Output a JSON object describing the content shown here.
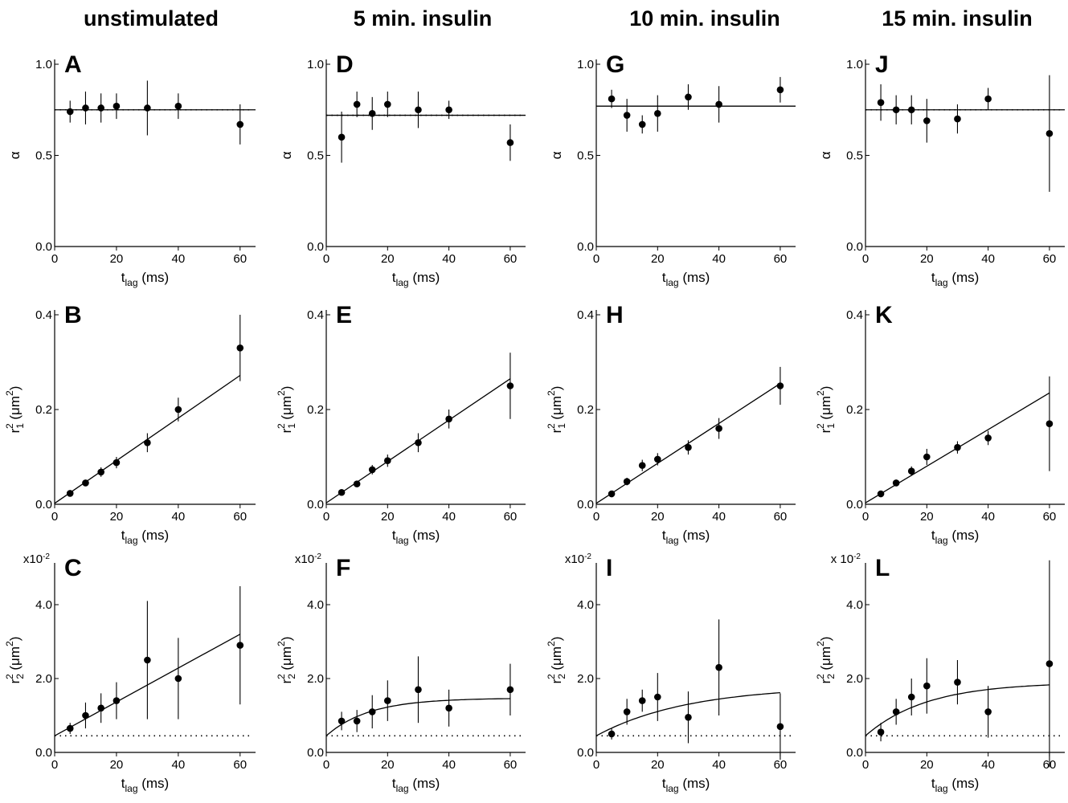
{
  "column_titles": [
    "unstimulated",
    "5 min. insulin",
    "10 min. insulin",
    "15 min. insulin"
  ],
  "chart_data": [
    {
      "panel": "A",
      "type": "scatter",
      "xlabel": "t",
      "xlabel_sub": "lag",
      "xlabel_unit": " (ms)",
      "ylabel": "α",
      "xlim": [
        0,
        65
      ],
      "ylim": [
        0,
        1
      ],
      "xticks": [
        "0",
        "20",
        "40",
        "60"
      ],
      "yticks": [
        "0.0",
        "0.5",
        "1.0"
      ],
      "yfactor": "",
      "x": [
        5,
        10,
        15,
        20,
        30,
        40,
        60
      ],
      "y": [
        0.74,
        0.76,
        0.76,
        0.77,
        0.76,
        0.77,
        0.67
      ],
      "err": [
        0.06,
        0.09,
        0.08,
        0.07,
        0.15,
        0.07,
        0.11
      ],
      "fit": {
        "type": "line",
        "points": [
          [
            0,
            0.75
          ],
          [
            65,
            0.75
          ]
        ]
      },
      "dotted": 0.75
    },
    {
      "panel": "B",
      "type": "scatter",
      "xlabel": "t",
      "xlabel_sub": "lag",
      "xlabel_unit": " (ms)",
      "ylabel": "r",
      "ylabel_sub": "1",
      "ylabel_unit": " (μm",
      "xlim": [
        0,
        65
      ],
      "ylim": [
        0,
        0.4
      ],
      "xticks": [
        "0",
        "20",
        "40",
        "60"
      ],
      "yticks": [
        "0.0",
        "0.2",
        "0.4"
      ],
      "yfactor": "",
      "x": [
        5,
        10,
        15,
        20,
        30,
        40,
        60
      ],
      "y": [
        0.023,
        0.045,
        0.068,
        0.088,
        0.13,
        0.2,
        0.33
      ],
      "err": [
        0.005,
        0.005,
        0.01,
        0.012,
        0.02,
        0.025,
        0.07
      ],
      "fit": {
        "type": "line",
        "points": [
          [
            0,
            0.002
          ],
          [
            60,
            0.272
          ]
        ]
      }
    },
    {
      "panel": "C",
      "type": "scatter",
      "xlabel": "t",
      "xlabel_sub": "lag",
      "xlabel_unit": " (ms)",
      "ylabel": "r",
      "ylabel_sub": "2",
      "ylabel_unit": " (μm",
      "xlim": [
        0,
        65
      ],
      "ylim": [
        0,
        5
      ],
      "xticks": [
        "0",
        "20",
        "40",
        "60"
      ],
      "yticks": [
        "0.0",
        "2.0",
        "4.0"
      ],
      "yfactor": "x10",
      "yfactor_exp": "-2",
      "x": [
        5,
        10,
        15,
        20,
        30,
        40,
        60
      ],
      "y": [
        0.65,
        1.0,
        1.2,
        1.4,
        2.5,
        2.0,
        2.9
      ],
      "err": [
        0.15,
        0.35,
        0.4,
        0.5,
        1.6,
        1.1,
        1.6
      ],
      "fit": {
        "type": "line",
        "points": [
          [
            0,
            0.45
          ],
          [
            60,
            3.2
          ]
        ]
      },
      "dotted": 0.45
    },
    {
      "panel": "D",
      "type": "scatter",
      "xlabel": "t",
      "xlabel_sub": "lag",
      "xlabel_unit": " (ms)",
      "ylabel": "α",
      "xlim": [
        0,
        65
      ],
      "ylim": [
        0,
        1
      ],
      "xticks": [
        "0",
        "20",
        "40",
        "60"
      ],
      "yticks": [
        "0.0",
        "0.5",
        "1.0"
      ],
      "yfactor": "",
      "x": [
        5,
        10,
        15,
        20,
        30,
        40,
        60
      ],
      "y": [
        0.6,
        0.78,
        0.73,
        0.78,
        0.75,
        0.75,
        0.57
      ],
      "err": [
        0.14,
        0.07,
        0.09,
        0.07,
        0.1,
        0.05,
        0.1
      ],
      "fit": {
        "type": "line",
        "points": [
          [
            0,
            0.72
          ],
          [
            65,
            0.72
          ]
        ]
      },
      "dotted": 0.72
    },
    {
      "panel": "E",
      "type": "scatter",
      "xlabel": "t",
      "xlabel_sub": "lag",
      "xlabel_unit": " (ms)",
      "ylabel": "r",
      "ylabel_sub": "1",
      "ylabel_unit": " (μm",
      "xlim": [
        0,
        65
      ],
      "ylim": [
        0,
        0.4
      ],
      "xticks": [
        "0",
        "20",
        "40",
        "60"
      ],
      "yticks": [
        "0.0",
        "0.2",
        "0.4"
      ],
      "yfactor": "",
      "x": [
        5,
        10,
        15,
        20,
        30,
        40,
        60
      ],
      "y": [
        0.025,
        0.043,
        0.073,
        0.092,
        0.13,
        0.18,
        0.25
      ],
      "err": [
        0.005,
        0.006,
        0.01,
        0.013,
        0.02,
        0.02,
        0.07
      ],
      "fit": {
        "type": "line",
        "points": [
          [
            0,
            0.003
          ],
          [
            60,
            0.265
          ]
        ]
      }
    },
    {
      "panel": "F",
      "type": "scatter",
      "xlabel": "t",
      "xlabel_sub": "lag",
      "xlabel_unit": " (ms)",
      "ylabel": "r",
      "ylabel_sub": "2",
      "ylabel_unit": " (μm",
      "xlim": [
        0,
        65
      ],
      "ylim": [
        0,
        5
      ],
      "xticks": [
        "0",
        "20",
        "40",
        "60"
      ],
      "yticks": [
        "0.0",
        "2.0",
        "4.0"
      ],
      "yfactor": "x10",
      "yfactor_exp": "-2",
      "x": [
        5,
        10,
        15,
        20,
        30,
        40,
        60
      ],
      "y": [
        0.85,
        0.85,
        1.1,
        1.4,
        1.7,
        1.2,
        1.7
      ],
      "err": [
        0.25,
        0.3,
        0.45,
        0.55,
        0.9,
        0.5,
        0.7
      ],
      "fit": {
        "type": "exp",
        "y0": 0.45,
        "amp": 1.02,
        "tau": 14,
        "x": [
          0,
          60
        ]
      },
      "dotted": 0.45
    },
    {
      "panel": "G",
      "type": "scatter",
      "xlabel": "t",
      "xlabel_sub": "lag",
      "xlabel_unit": " (ms)",
      "ylabel": "α",
      "xlim": [
        0,
        65
      ],
      "ylim": [
        0,
        1
      ],
      "xticks": [
        "0",
        "20",
        "40",
        "60"
      ],
      "yticks": [
        "0.0",
        "0.5",
        "1.0"
      ],
      "yfactor": "",
      "x": [
        5,
        10,
        15,
        20,
        30,
        40,
        60
      ],
      "y": [
        0.81,
        0.72,
        0.67,
        0.73,
        0.82,
        0.78,
        0.86
      ],
      "err": [
        0.05,
        0.09,
        0.05,
        0.1,
        0.07,
        0.1,
        0.07
      ],
      "fit": {
        "type": "line",
        "points": [
          [
            0,
            0.77
          ],
          [
            65,
            0.77
          ]
        ]
      }
    },
    {
      "panel": "H",
      "type": "scatter",
      "xlabel": "t",
      "xlabel_sub": "lag",
      "xlabel_unit": " (ms)",
      "ylabel": "r",
      "ylabel_sub": "1",
      "ylabel_unit": " (μm",
      "xlim": [
        0,
        65
      ],
      "ylim": [
        0,
        0.4
      ],
      "xticks": [
        "0",
        "20",
        "40",
        "60"
      ],
      "yticks": [
        "0.0",
        "0.2",
        "0.4"
      ],
      "yfactor": "",
      "x": [
        5,
        10,
        15,
        20,
        30,
        40,
        60
      ],
      "y": [
        0.022,
        0.048,
        0.082,
        0.095,
        0.12,
        0.16,
        0.25
      ],
      "err": [
        0.004,
        0.008,
        0.012,
        0.013,
        0.015,
        0.022,
        0.04
      ],
      "fit": {
        "type": "line",
        "points": [
          [
            0,
            0.002
          ],
          [
            60,
            0.255
          ]
        ]
      }
    },
    {
      "panel": "I",
      "type": "scatter",
      "xlabel": "t",
      "xlabel_sub": "lag",
      "xlabel_unit": " (ms)",
      "ylabel": "r",
      "ylabel_sub": "2",
      "ylabel_unit": " (μm",
      "xlim": [
        0,
        65
      ],
      "ylim": [
        0,
        5
      ],
      "xticks": [
        "0",
        "20",
        "40",
        "60"
      ],
      "yticks": [
        "0.0",
        "2.0",
        "4.0"
      ],
      "yfactor": "x10",
      "yfactor_exp": "-2",
      "x": [
        5,
        10,
        15,
        20,
        30,
        40,
        60
      ],
      "y": [
        0.5,
        1.1,
        1.4,
        1.5,
        0.95,
        2.3,
        0.7
      ],
      "err": [
        0.15,
        0.35,
        0.3,
        0.65,
        0.7,
        1.3,
        0.9
      ],
      "fit": {
        "type": "exp",
        "y0": 0.45,
        "amp": 1.35,
        "tau": 30,
        "x": [
          0,
          60
        ]
      },
      "dotted": 0.45
    },
    {
      "panel": "J",
      "type": "scatter",
      "xlabel": "t",
      "xlabel_sub": "lag",
      "xlabel_unit": " (ms)",
      "ylabel": "α",
      "xlim": [
        0,
        65
      ],
      "ylim": [
        0,
        1
      ],
      "xticks": [
        "0",
        "20",
        "40",
        "60"
      ],
      "yticks": [
        "0.0",
        "0.5",
        "1.0"
      ],
      "yfactor": "",
      "x": [
        5,
        10,
        15,
        20,
        30,
        40,
        60
      ],
      "y": [
        0.79,
        0.75,
        0.75,
        0.69,
        0.7,
        0.81,
        0.62
      ],
      "err": [
        0.1,
        0.08,
        0.08,
        0.12,
        0.08,
        0.06,
        0.32
      ],
      "fit": {
        "type": "line",
        "points": [
          [
            0,
            0.75
          ],
          [
            65,
            0.75
          ]
        ]
      },
      "dotted": 0.75
    },
    {
      "panel": "K",
      "type": "scatter",
      "xlabel": "t",
      "xlabel_sub": "lag",
      "xlabel_unit": " (ms)",
      "ylabel": "r",
      "ylabel_sub": "1",
      "ylabel_unit": " (μm",
      "xlim": [
        0,
        65
      ],
      "ylim": [
        0,
        0.4
      ],
      "xticks": [
        "0",
        "20",
        "40",
        "60"
      ],
      "yticks": [
        "0.0",
        "0.2",
        "0.4"
      ],
      "yfactor": "",
      "x": [
        5,
        10,
        15,
        20,
        30,
        40,
        60
      ],
      "y": [
        0.022,
        0.045,
        0.07,
        0.1,
        0.12,
        0.14,
        0.17
      ],
      "err": [
        0.004,
        0.007,
        0.01,
        0.017,
        0.013,
        0.015,
        0.1
      ],
      "fit": {
        "type": "line",
        "points": [
          [
            0,
            0.003
          ],
          [
            60,
            0.235
          ]
        ]
      }
    },
    {
      "panel": "L",
      "type": "scatter",
      "xlabel": "t",
      "xlabel_sub": "lag",
      "xlabel_unit": " (ms)",
      "ylabel": "r",
      "ylabel_sub": "2",
      "ylabel_unit": " (μm",
      "xlim": [
        0,
        65
      ],
      "ylim": [
        0,
        5
      ],
      "xticks": [
        "0",
        "20",
        "40",
        "60"
      ],
      "yticks": [
        "0.0",
        "2.0",
        "4.0"
      ],
      "yfactor": "x 10",
      "yfactor_exp": "-2",
      "x": [
        5,
        10,
        15,
        20,
        30,
        40,
        60
      ],
      "y": [
        0.55,
        1.1,
        1.5,
        1.8,
        1.9,
        1.1,
        2.4
      ],
      "err": [
        0.25,
        0.35,
        0.5,
        0.75,
        0.6,
        0.7,
        2.8
      ],
      "fit": {
        "type": "exp",
        "y0": 0.45,
        "amp": 1.45,
        "tau": 20,
        "x": [
          0,
          60
        ]
      },
      "dotted": 0.45
    }
  ]
}
